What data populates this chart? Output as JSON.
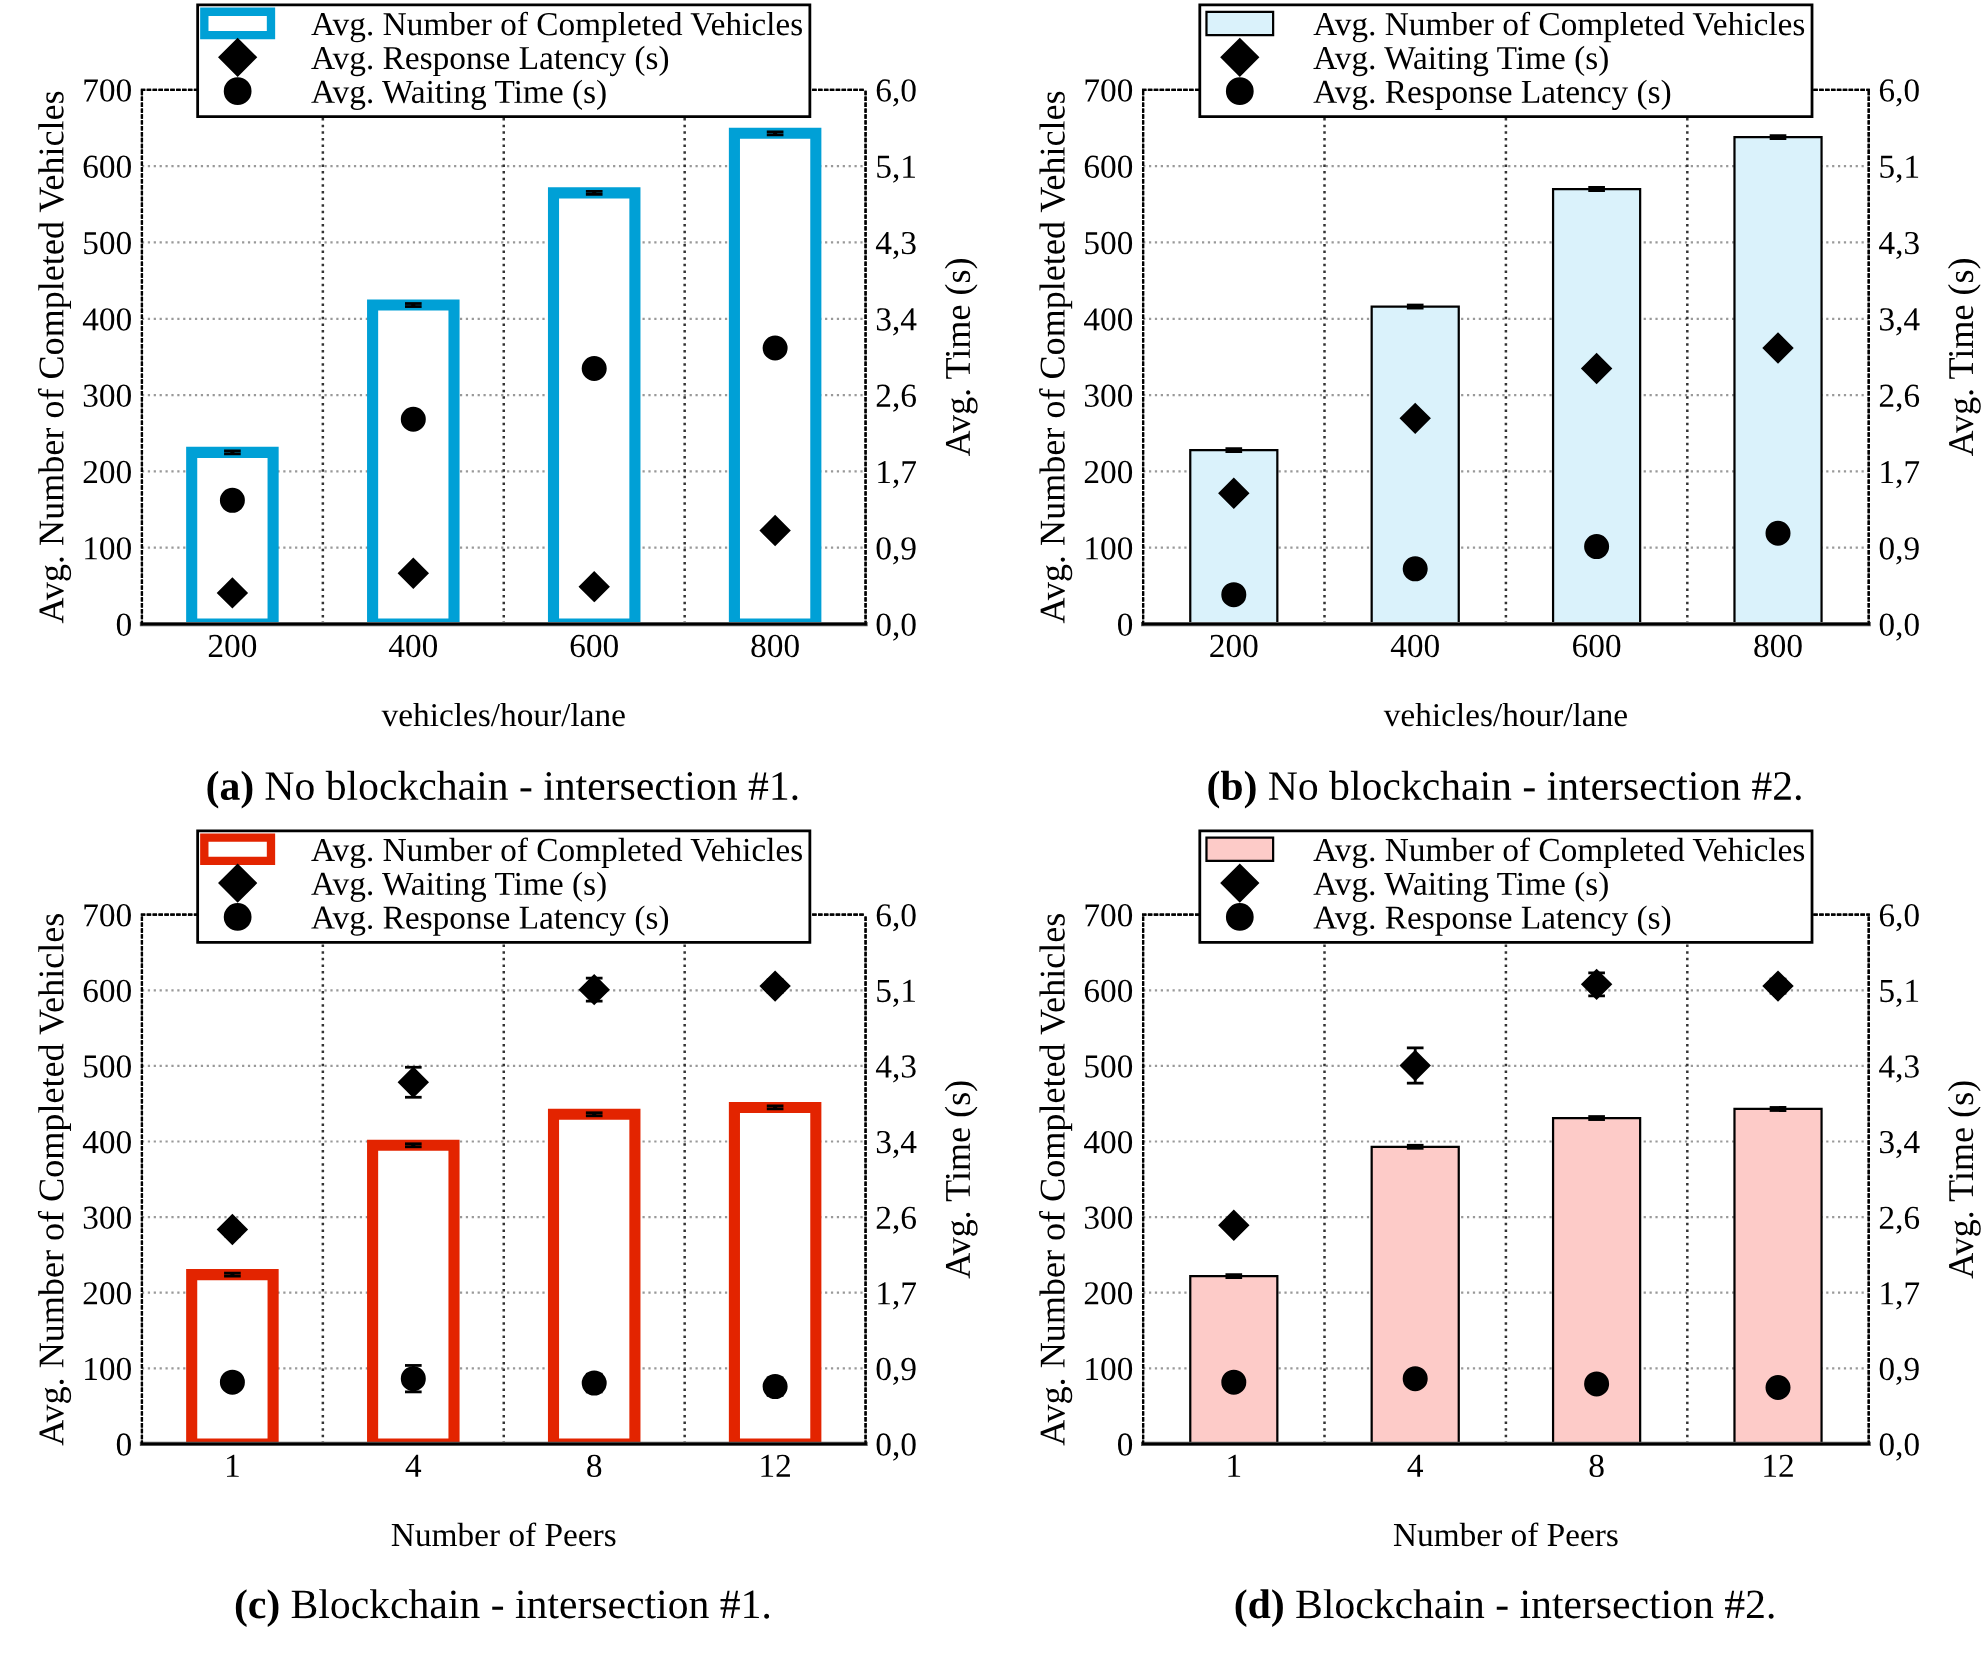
{
  "chart_data": [
    {
      "type": "bar",
      "title": "(a) No blockchain - intersection #1.",
      "xlabel": "vehicles/hour/lane",
      "ylabel": "Avg. Number of Completed Vehicles",
      "y2label": "Avg. Time (s)",
      "categories": [
        "200",
        "400",
        "600",
        "800"
      ],
      "ylim": [
        0,
        700
      ],
      "yticks": [
        0,
        100,
        200,
        300,
        400,
        500,
        600,
        700
      ],
      "y2lim": [
        0,
        6
      ],
      "y2ticks": [
        {
          "value": 0,
          "label": "0,0"
        },
        {
          "value": 0.857,
          "label": "0,9"
        },
        {
          "value": 1.714,
          "label": "1,7"
        },
        {
          "value": 2.571,
          "label": "2,6"
        },
        {
          "value": 3.429,
          "label": "3,4"
        },
        {
          "value": 4.286,
          "label": "4,3"
        },
        {
          "value": 5.143,
          "label": "5,1"
        },
        {
          "value": 6,
          "label": "6,0"
        }
      ],
      "grid": true,
      "legend": "top",
      "series": [
        {
          "name": "Avg. Number of Completed Vehicles",
          "type": "bar",
          "color": "#00a0d6",
          "values": [
            225,
            418,
            565,
            643
          ],
          "errors": [
            2,
            2,
            2,
            2
          ]
        },
        {
          "name": "Avg. Response Latency (s)",
          "type": "scatter",
          "axis": "y2",
          "marker": "diamond",
          "color": "#000000",
          "values": [
            0.35,
            0.57,
            0.42,
            1.05
          ]
        },
        {
          "name": "Avg. Waiting Time (s)",
          "type": "scatter",
          "axis": "y2",
          "marker": "circle",
          "color": "#000000",
          "values": [
            1.39,
            2.3,
            2.87,
            3.1
          ]
        }
      ]
    },
    {
      "type": "bar",
      "title": "(b) No blockchain - intersection #2.",
      "xlabel": "vehicles/hour/lane",
      "ylabel": "Avg. Number of Completed Vehicles",
      "y2label": "Avg. Time (s)",
      "categories": [
        "200",
        "400",
        "600",
        "800"
      ],
      "ylim": [
        0,
        700
      ],
      "yticks": [
        0,
        100,
        200,
        300,
        400,
        500,
        600,
        700
      ],
      "y2lim": [
        0,
        6
      ],
      "y2ticks": [
        {
          "value": 0,
          "label": "0,0"
        },
        {
          "value": 0.857,
          "label": "0,9"
        },
        {
          "value": 1.714,
          "label": "1,7"
        },
        {
          "value": 2.571,
          "label": "2,6"
        },
        {
          "value": 3.429,
          "label": "3,4"
        },
        {
          "value": 4.286,
          "label": "4,3"
        },
        {
          "value": 5.143,
          "label": "5,1"
        },
        {
          "value": 6,
          "label": "6,0"
        }
      ],
      "grid": true,
      "legend": "top",
      "series": [
        {
          "name": "Avg. Number of Completed Vehicles",
          "type": "bar",
          "color": "#daf2fb",
          "values": [
            228,
            416,
            570,
            638
          ],
          "errors": [
            2,
            2,
            2,
            2
          ]
        },
        {
          "name": "Avg. Waiting Time (s)",
          "type": "scatter",
          "axis": "y2",
          "marker": "diamond",
          "color": "#000000",
          "values": [
            1.47,
            2.31,
            2.87,
            3.1
          ]
        },
        {
          "name": "Avg. Response Latency (s)",
          "type": "scatter",
          "axis": "y2",
          "marker": "circle",
          "color": "#000000",
          "values": [
            0.33,
            0.62,
            0.87,
            1.02
          ]
        }
      ]
    },
    {
      "type": "bar",
      "title": "(c) Blockchain - intersection #1.",
      "xlabel": "Number of Peers",
      "ylabel": "Avg. Number of Completed Vehicles",
      "y2label": "Avg. Time (s)",
      "categories": [
        "1",
        "4",
        "8",
        "12"
      ],
      "ylim": [
        0,
        700
      ],
      "yticks": [
        0,
        100,
        200,
        300,
        400,
        500,
        600,
        700
      ],
      "y2lim": [
        0,
        6
      ],
      "y2ticks": [
        {
          "value": 0,
          "label": "0,0"
        },
        {
          "value": 0.857,
          "label": "0,9"
        },
        {
          "value": 1.714,
          "label": "1,7"
        },
        {
          "value": 2.571,
          "label": "2,6"
        },
        {
          "value": 3.429,
          "label": "3,4"
        },
        {
          "value": 4.286,
          "label": "4,3"
        },
        {
          "value": 5.143,
          "label": "5,1"
        },
        {
          "value": 6,
          "label": "6,0"
        }
      ],
      "grid": true,
      "legend": "top",
      "series": [
        {
          "name": "Avg. Number of Completed Vehicles",
          "type": "bar",
          "color": "#e32400",
          "values": [
            224,
            395,
            436,
            445
          ],
          "errors": [
            2,
            2,
            2,
            2
          ]
        },
        {
          "name": "Avg. Waiting Time (s)",
          "type": "scatter",
          "axis": "y2",
          "marker": "diamond",
          "color": "#000000",
          "values": [
            2.43,
            4.1,
            5.15,
            5.19
          ],
          "errors": [
            0.07,
            0.17,
            0.13,
            0.07
          ]
        },
        {
          "name": "Avg. Response Latency (s)",
          "type": "scatter",
          "axis": "y2",
          "marker": "circle",
          "color": "#000000",
          "values": [
            0.7,
            0.74,
            0.69,
            0.65
          ],
          "errors": [
            0.03,
            0.15,
            0.1,
            0.1
          ]
        }
      ]
    },
    {
      "type": "bar",
      "title": "(d) Blockchain - intersection #2.",
      "xlabel": "Number of Peers",
      "ylabel": "Avg. Number of Completed Vehicles",
      "y2label": "Avg. Time (s)",
      "categories": [
        "1",
        "4",
        "8",
        "12"
      ],
      "ylim": [
        0,
        700
      ],
      "yticks": [
        0,
        100,
        200,
        300,
        400,
        500,
        600,
        700
      ],
      "y2lim": [
        0,
        6
      ],
      "y2ticks": [
        {
          "value": 0,
          "label": "0,0"
        },
        {
          "value": 0.857,
          "label": "0,9"
        },
        {
          "value": 1.714,
          "label": "1,7"
        },
        {
          "value": 2.571,
          "label": "2,6"
        },
        {
          "value": 3.429,
          "label": "3,4"
        },
        {
          "value": 4.286,
          "label": "4,3"
        },
        {
          "value": 5.143,
          "label": "5,1"
        },
        {
          "value": 6,
          "label": "6,0"
        }
      ],
      "grid": true,
      "legend": "top",
      "series": [
        {
          "name": "Avg. Number of Completed Vehicles",
          "type": "bar",
          "color": "#fdcbc8",
          "values": [
            222,
            393,
            431,
            443
          ],
          "errors": [
            2,
            2,
            2,
            2
          ]
        },
        {
          "name": "Avg. Waiting Time (s)",
          "type": "scatter",
          "axis": "y2",
          "marker": "diamond",
          "color": "#000000",
          "values": [
            2.48,
            4.29,
            5.21,
            5.19
          ],
          "errors": [
            0.05,
            0.2,
            0.13,
            0.08
          ]
        },
        {
          "name": "Avg. Response Latency (s)",
          "type": "scatter",
          "axis": "y2",
          "marker": "circle",
          "color": "#000000",
          "values": [
            0.7,
            0.74,
            0.68,
            0.64
          ],
          "errors": [
            0.03,
            0.03,
            0.03,
            0.03
          ]
        }
      ]
    }
  ]
}
